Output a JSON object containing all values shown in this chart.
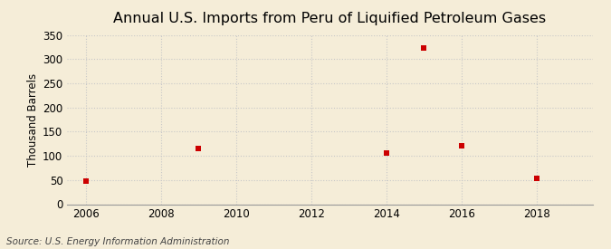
{
  "title": "Annual U.S. Imports from Peru of Liquified Petroleum Gases",
  "ylabel": "Thousand Barrels",
  "source": "Source: U.S. Energy Information Administration",
  "background_color": "#f5edd8",
  "x_data": [
    2006,
    2009,
    2014,
    2015,
    2016,
    2018
  ],
  "y_data": [
    47,
    115,
    105,
    322,
    120,
    54
  ],
  "marker_color": "#cc0000",
  "marker": "s",
  "marker_size": 4,
  "xlim": [
    2005.5,
    2019.5
  ],
  "ylim": [
    0,
    350
  ],
  "yticks": [
    0,
    50,
    100,
    150,
    200,
    250,
    300,
    350
  ],
  "xticks": [
    2006,
    2008,
    2010,
    2012,
    2014,
    2016,
    2018
  ],
  "grid_color": "#c8c8c8",
  "grid_style": ":",
  "title_fontsize": 11.5,
  "label_fontsize": 8.5,
  "tick_fontsize": 8.5,
  "source_fontsize": 7.5
}
